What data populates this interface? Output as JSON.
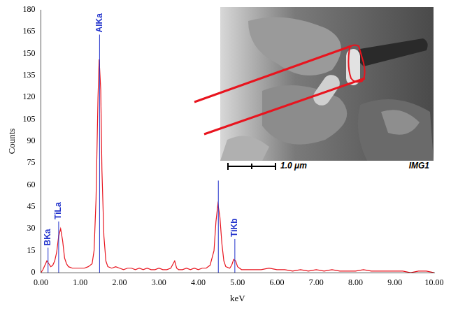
{
  "chart_data": {
    "type": "line",
    "x_label": "keV",
    "y_label": "Counts",
    "color": "#e8141e",
    "grid": false,
    "xlim": [
      0,
      10
    ],
    "xticks": [
      {
        "value": 0,
        "label": "0.00"
      },
      {
        "value": 1,
        "label": "1.00"
      },
      {
        "value": 2,
        "label": "2.00"
      },
      {
        "value": 3,
        "label": "3.00"
      },
      {
        "value": 4,
        "label": "4.00"
      },
      {
        "value": 5,
        "label": "5.00"
      },
      {
        "value": 6,
        "label": "6.00"
      },
      {
        "value": 7,
        "label": "7.00"
      },
      {
        "value": 8,
        "label": "8.00"
      },
      {
        "value": 9,
        "label": "9.00"
      },
      {
        "value": 10,
        "label": "10.00"
      }
    ],
    "ylim": [
      0,
      180
    ],
    "yticks": [
      0,
      15,
      30,
      45,
      60,
      75,
      90,
      105,
      120,
      135,
      150,
      165,
      180
    ],
    "x": [
      0.0,
      0.05,
      0.1,
      0.15,
      0.2,
      0.25,
      0.3,
      0.35,
      0.4,
      0.45,
      0.5,
      0.55,
      0.6,
      0.65,
      0.7,
      0.8,
      0.9,
      1.0,
      1.1,
      1.2,
      1.3,
      1.35,
      1.4,
      1.45,
      1.48,
      1.52,
      1.55,
      1.6,
      1.65,
      1.7,
      1.8,
      1.9,
      2.0,
      2.1,
      2.2,
      2.3,
      2.4,
      2.5,
      2.6,
      2.7,
      2.8,
      2.9,
      3.0,
      3.1,
      3.2,
      3.3,
      3.4,
      3.45,
      3.5,
      3.6,
      3.7,
      3.8,
      3.9,
      4.0,
      4.1,
      4.2,
      4.3,
      4.4,
      4.45,
      4.5,
      4.55,
      4.6,
      4.65,
      4.7,
      4.8,
      4.85,
      4.9,
      4.95,
      5.0,
      5.1,
      5.2,
      5.4,
      5.6,
      5.8,
      6.0,
      6.2,
      6.4,
      6.6,
      6.8,
      7.0,
      7.2,
      7.4,
      7.6,
      7.8,
      8.0,
      8.2,
      8.4,
      8.6,
      8.8,
      9.0,
      9.2,
      9.4,
      9.6,
      9.8,
      10.0
    ],
    "values": [
      0,
      2,
      5,
      8,
      6,
      4,
      5,
      8,
      14,
      25,
      30,
      22,
      10,
      6,
      4,
      3,
      3,
      3,
      3,
      4,
      6,
      15,
      50,
      120,
      146,
      125,
      70,
      25,
      8,
      4,
      3,
      4,
      3,
      2,
      3,
      3,
      2,
      3,
      2,
      3,
      2,
      2,
      3,
      2,
      2,
      3,
      8,
      3,
      2,
      2,
      3,
      2,
      3,
      2,
      3,
      3,
      5,
      15,
      35,
      47,
      38,
      20,
      8,
      4,
      3,
      5,
      9,
      8,
      4,
      2,
      2,
      2,
      2,
      3,
      2,
      2,
      1,
      2,
      1,
      2,
      1,
      2,
      1,
      1,
      1,
      2,
      1,
      1,
      1,
      1,
      1,
      0,
      1,
      1,
      0
    ],
    "peak_lines": [
      {
        "x": 0.18,
        "height": 17,
        "label": "BKa"
      },
      {
        "x": 0.45,
        "height": 35,
        "label": "TiLa"
      },
      {
        "x": 1.49,
        "height": 163,
        "label": "AlKa"
      },
      {
        "x": 4.51,
        "height": 63
      },
      {
        "x": 4.93,
        "height": 23,
        "label": "TiKb"
      }
    ],
    "peak_color": "#2233cc",
    "inset": {
      "scale_label": "1.0 μm",
      "image_label": "IMG1"
    }
  }
}
